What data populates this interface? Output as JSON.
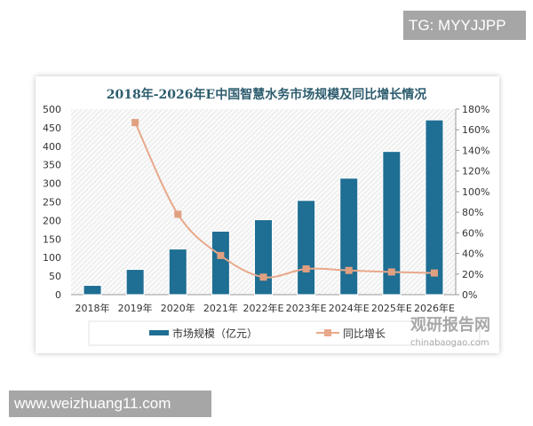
{
  "watermark_top": "TG: MYYJJPP",
  "watermark_bottom": "www.weizhuang11.com",
  "brand": {
    "name": "观研报告网",
    "url": "chinabaogao.com"
  },
  "chart_data": {
    "type": "bar+line",
    "title": "2018年-2026年E中国智慧水务市场规模及同比增长情况",
    "categories": [
      "2018年",
      "2019年",
      "2020年",
      "2021年",
      "2022年E",
      "2023年E",
      "2024年E",
      "2025年E",
      "2026年E"
    ],
    "series": [
      {
        "name": "市场规模（亿元）",
        "type": "bar",
        "axis": "left",
        "color": "#1f6e93",
        "values": [
          25,
          68,
          123,
          171,
          202,
          254,
          314,
          386,
          471
        ]
      },
      {
        "name": "同比增长",
        "type": "line",
        "axis": "right",
        "color": "#e8a88a",
        "values": [
          null,
          167,
          78,
          38,
          17,
          25,
          23.5,
          22,
          21
        ]
      }
    ],
    "ylim": [
      0,
      500
    ],
    "yticks": [
      "0",
      "50",
      "100",
      "150",
      "200",
      "250",
      "300",
      "350",
      "400",
      "450",
      "500"
    ],
    "y2lim": [
      0,
      180
    ],
    "y2ticks": [
      "0%",
      "20%",
      "40%",
      "60%",
      "80%",
      "100%",
      "120%",
      "140%",
      "160%",
      "180%"
    ],
    "legend": "bottom"
  }
}
